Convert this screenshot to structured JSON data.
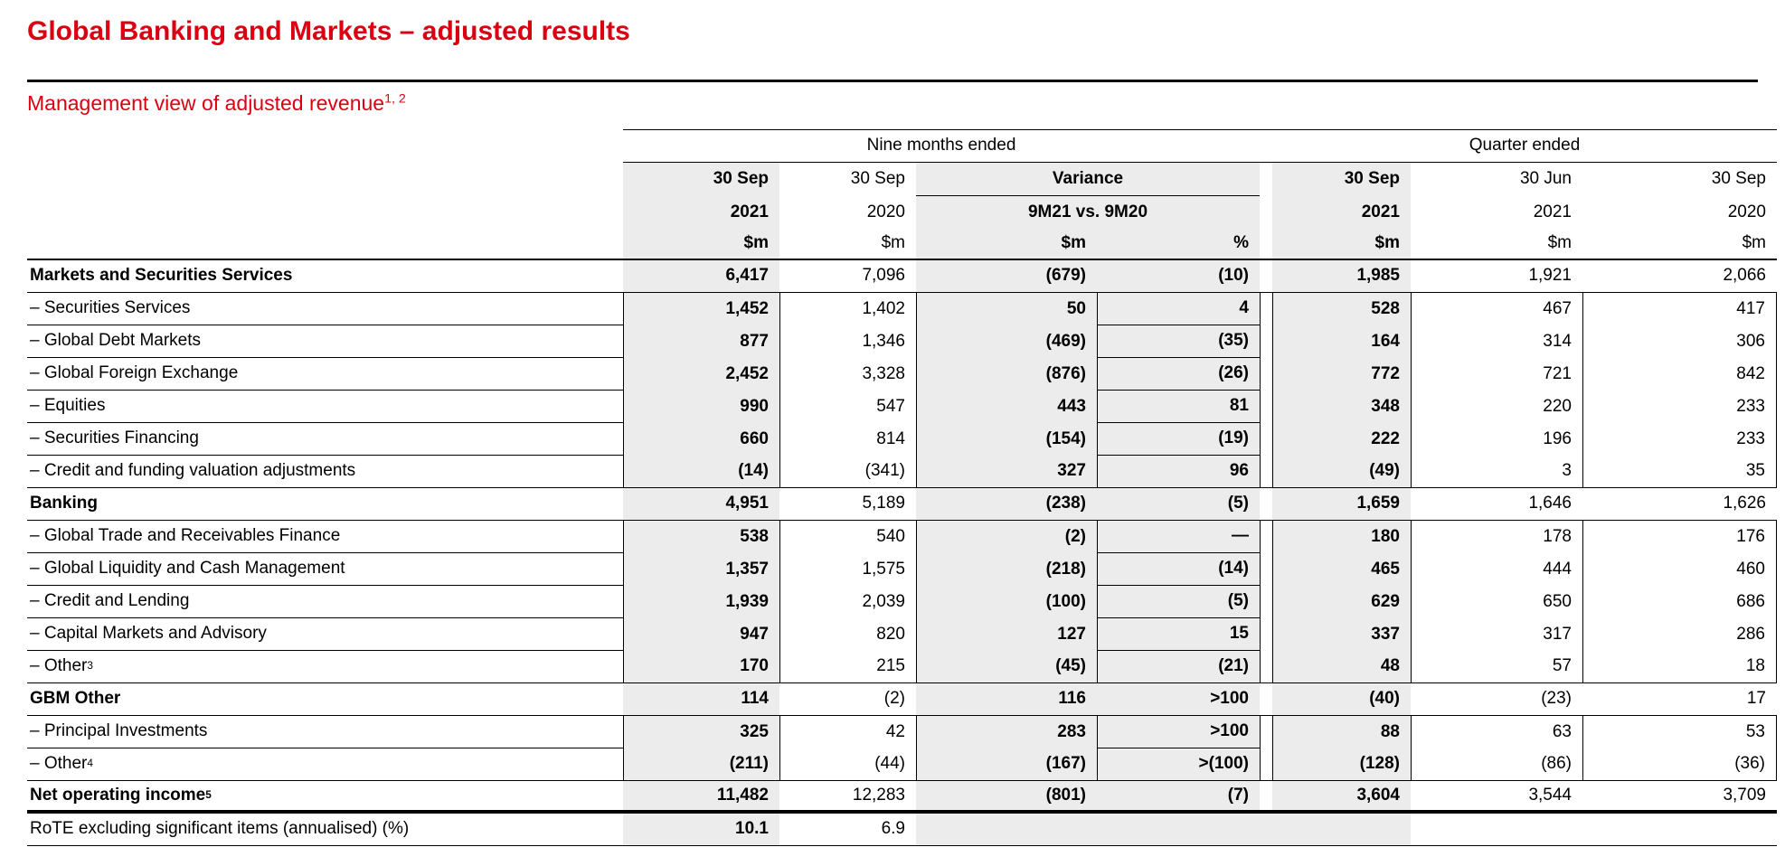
{
  "colors": {
    "accent_red": "#db0011",
    "shade_gray": "#ececec",
    "line_black": "#000000"
  },
  "title": "Global Banking and Markets – adjusted results",
  "subtitle": {
    "text": "Management view of adjusted revenue",
    "sup": "1, 2"
  },
  "table": {
    "head": {
      "nine_months_label": "Nine months ended",
      "quarter_label": "Quarter ended",
      "variance_label": "Variance",
      "variance_sublabel": "9M21 vs. 9M20",
      "cols": {
        "nm1": {
          "period": "30 Sep",
          "year": "2021",
          "unit": "$m"
        },
        "nm2": {
          "period": "30 Sep",
          "year": "2020",
          "unit": "$m"
        },
        "var_m_unit": "$m",
        "var_pct_unit": "%",
        "q1": {
          "period": "30 Sep",
          "year": "2021",
          "unit": "$m"
        },
        "q2": {
          "period": "30 Jun",
          "year": "2021",
          "unit": "$m"
        },
        "q3": {
          "period": "30 Sep",
          "year": "2020",
          "unit": "$m"
        }
      }
    },
    "rows": [
      {
        "label": "Markets and Securities Services",
        "sup": "",
        "type": "section",
        "sep": "full",
        "values": [
          "6,417",
          "7,096",
          "(679)",
          "(10)",
          "1,985",
          "1,921",
          "2,066"
        ]
      },
      {
        "label": "–  Securities Services",
        "sup": "",
        "type": "sub",
        "sep": "partial",
        "values": [
          "1,452",
          "1,402",
          "50",
          "4",
          "528",
          "467",
          "417"
        ]
      },
      {
        "label": "–  Global Debt Markets",
        "sup": "",
        "type": "sub",
        "sep": "partial",
        "values": [
          "877",
          "1,346",
          "(469)",
          "(35)",
          "164",
          "314",
          "306"
        ]
      },
      {
        "label": "–  Global Foreign Exchange",
        "sup": "",
        "type": "sub",
        "sep": "partial",
        "values": [
          "2,452",
          "3,328",
          "(876)",
          "(26)",
          "772",
          "721",
          "842"
        ]
      },
      {
        "label": "–  Equities",
        "sup": "",
        "type": "sub",
        "sep": "partial",
        "values": [
          "990",
          "547",
          "443",
          "81",
          "348",
          "220",
          "233"
        ]
      },
      {
        "label": "–  Securities Financing",
        "sup": "",
        "type": "sub",
        "sep": "partial",
        "values": [
          "660",
          "814",
          "(154)",
          "(19)",
          "222",
          "196",
          "233"
        ]
      },
      {
        "label": "–  Credit and funding valuation adjustments",
        "sup": "",
        "type": "sub",
        "sep": "full",
        "values": [
          "(14)",
          "(341)",
          "327",
          "96",
          "(49)",
          "3",
          "35"
        ]
      },
      {
        "label": "Banking",
        "sup": "",
        "type": "section",
        "sep": "full",
        "values": [
          "4,951",
          "5,189",
          "(238)",
          "(5)",
          "1,659",
          "1,646",
          "1,626"
        ]
      },
      {
        "label": "–  Global Trade and Receivables Finance",
        "sup": "",
        "type": "sub",
        "sep": "partial",
        "values": [
          "538",
          "540",
          "(2)",
          "—",
          "180",
          "178",
          "176"
        ]
      },
      {
        "label": "–  Global Liquidity and Cash Management",
        "sup": "",
        "type": "sub",
        "sep": "partial",
        "values": [
          "1,357",
          "1,575",
          "(218)",
          "(14)",
          "465",
          "444",
          "460"
        ]
      },
      {
        "label": "–  Credit and Lending",
        "sup": "",
        "type": "sub",
        "sep": "partial",
        "values": [
          "1,939",
          "2,039",
          "(100)",
          "(5)",
          "629",
          "650",
          "686"
        ]
      },
      {
        "label": "–  Capital Markets and Advisory",
        "sup": "",
        "type": "sub",
        "sep": "partial",
        "values": [
          "947",
          "820",
          "127",
          "15",
          "337",
          "317",
          "286"
        ]
      },
      {
        "label": "–  Other",
        "sup": "3",
        "type": "sub",
        "sep": "full",
        "values": [
          "170",
          "215",
          "(45)",
          "(21)",
          "48",
          "57",
          "18"
        ]
      },
      {
        "label": "GBM Other",
        "sup": "",
        "type": "section",
        "sep": "full",
        "values": [
          "114",
          "(2)",
          "116",
          ">100",
          "(40)",
          "(23)",
          "17"
        ]
      },
      {
        "label": "–  Principal Investments",
        "sup": "",
        "type": "sub",
        "sep": "partial",
        "values": [
          "325",
          "42",
          "283",
          ">100",
          "88",
          "63",
          "53"
        ]
      },
      {
        "label": "–  Other",
        "sup": "4",
        "type": "sub",
        "sep": "full",
        "values": [
          "(211)",
          "(44)",
          "(167)",
          ">(100)",
          "(128)",
          "(86)",
          "(36)"
        ]
      },
      {
        "label": "Net operating income",
        "sup": "5",
        "type": "total",
        "sep": "thick",
        "values": [
          "11,482",
          "12,283",
          "(801)",
          "(7)",
          "3,604",
          "3,544",
          "3,709"
        ]
      },
      {
        "label": "RoTE excluding significant items (annualised) (%)",
        "sup": "",
        "type": "rote",
        "sep": "full",
        "values": [
          "10.1",
          "6.9",
          "",
          "",
          "",
          "",
          ""
        ]
      }
    ]
  }
}
